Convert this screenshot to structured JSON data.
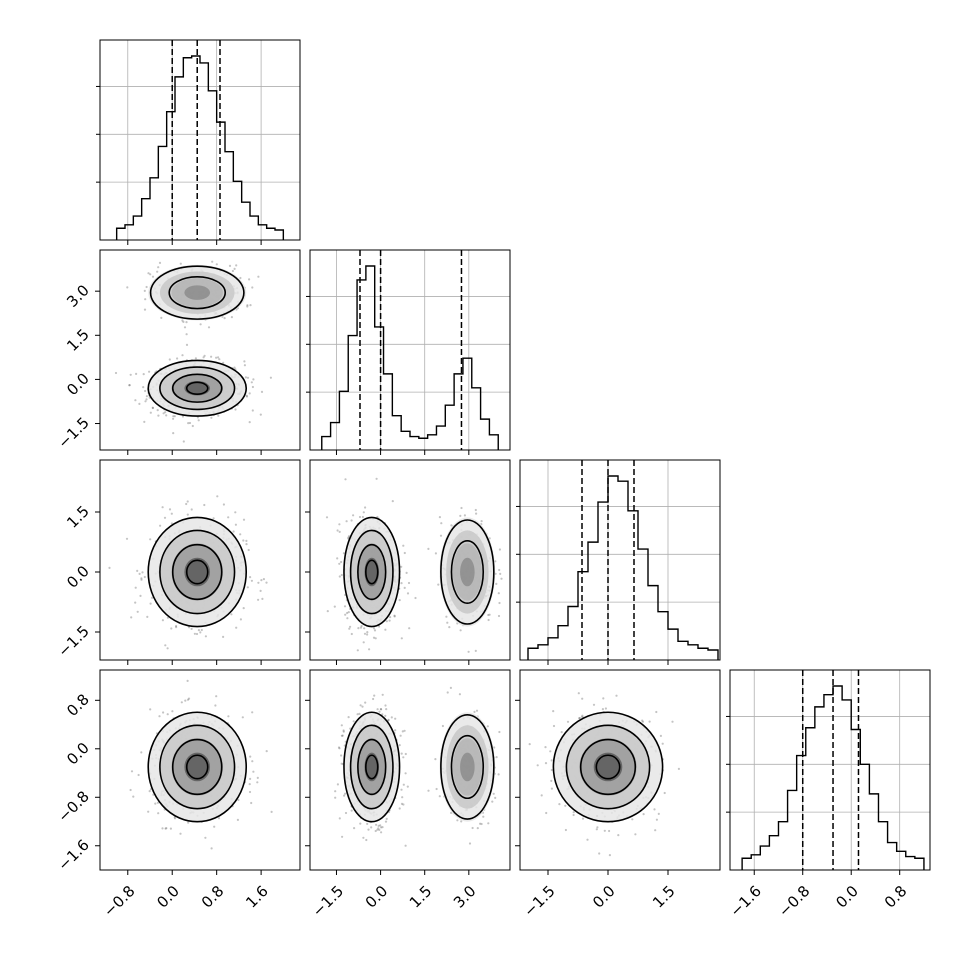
{
  "chart_data": {
    "type": "corner",
    "title": "",
    "parameters": [
      {
        "range": [
          -1.3,
          2.3
        ],
        "quantiles": [
          0.0,
          0.45,
          0.86
        ],
        "xticks": [
          "−0.8",
          "0.0",
          "0.8",
          "1.6"
        ],
        "xtick_values": [
          -0.8,
          0.0,
          0.8,
          1.6
        ],
        "hist": {
          "bins": [
            -1.0,
            -0.85,
            -0.7,
            -0.55,
            -0.4,
            -0.25,
            -0.1,
            0.05,
            0.2,
            0.35,
            0.5,
            0.65,
            0.8,
            0.95,
            1.1,
            1.25,
            1.4,
            1.55,
            1.7,
            1.85
          ],
          "counts": [
            1,
            3,
            8,
            18,
            30,
            48,
            68,
            88,
            99,
            100,
            96,
            80,
            62,
            45,
            28,
            16,
            8,
            3,
            1,
            0
          ]
        },
        "modes": [
          {
            "x": 0.45,
            "sx": 0.42
          }
        ]
      },
      {
        "range": [
          -2.4,
          4.4
        ],
        "quantiles": [
          -0.7,
          0.0,
          2.75
        ],
        "ticks": [
          "−1.5",
          "0.0",
          "1.5",
          "3.0"
        ],
        "tick_values": [
          -1.5,
          0.0,
          1.5,
          3.0
        ],
        "hist": {
          "bins": [
            -2.0,
            -1.7,
            -1.4,
            -1.1,
            -0.8,
            -0.5,
            -0.2,
            0.1,
            0.4,
            0.7,
            1.0,
            1.3,
            1.6,
            1.9,
            2.2,
            2.5,
            2.8,
            3.1,
            3.4,
            3.7
          ],
          "counts": [
            2,
            10,
            28,
            60,
            92,
            100,
            65,
            38,
            14,
            5,
            2,
            1,
            3,
            8,
            20,
            38,
            47,
            30,
            12,
            3
          ]
        },
        "modes": [
          {
            "x": -0.3,
            "sx": 0.45,
            "w": 0.7
          },
          {
            "x": 2.95,
            "sx": 0.45,
            "w": 0.3
          }
        ]
      },
      {
        "range": [
          -2.2,
          2.8
        ],
        "quantiles": [
          -0.65,
          0.0,
          0.65
        ],
        "ticks": [
          "−1.5",
          "0.0",
          "1.5"
        ],
        "tick_values": [
          -1.5,
          0.0,
          1.5
        ],
        "hist": {
          "bins": [
            -2.0,
            -1.75,
            -1.5,
            -1.25,
            -1.0,
            -0.75,
            -0.5,
            -0.25,
            0.0,
            0.25,
            0.5,
            0.75,
            1.0,
            1.25,
            1.5,
            1.75,
            2.0,
            2.25,
            2.5
          ],
          "counts": [
            1,
            3,
            7,
            14,
            25,
            45,
            62,
            85,
            100,
            97,
            80,
            58,
            37,
            22,
            12,
            5,
            3,
            1,
            0
          ]
        },
        "modes": [
          {
            "x": 0.0,
            "sx": 0.65
          }
        ]
      },
      {
        "range": [
          -2.0,
          1.3
        ],
        "quantiles": [
          -0.8,
          -0.3,
          0.12
        ],
        "ticks": [
          "−1.6",
          "−0.8",
          "0.0",
          "0.8"
        ],
        "tick_values": [
          -1.6,
          -0.8,
          0.0,
          0.8
        ],
        "yticks": [
          "0.8",
          "0.0",
          "−0.8",
          "−1.6"
        ],
        "ytick_values": [
          0.8,
          0.0,
          -0.8,
          -1.6
        ],
        "hist": {
          "bins": [
            -1.8,
            -1.65,
            -1.5,
            -1.35,
            -1.2,
            -1.05,
            -0.9,
            -0.75,
            -0.6,
            -0.45,
            -0.3,
            -0.15,
            0.0,
            0.15,
            0.3,
            0.45,
            0.6,
            0.75,
            0.9,
            1.05
          ],
          "counts": [
            1,
            3,
            8,
            14,
            22,
            40,
            60,
            76,
            88,
            95,
            100,
            92,
            75,
            55,
            38,
            22,
            10,
            5,
            2,
            1
          ]
        },
        "modes": [
          {
            "x": -0.3,
            "sx": 0.43
          }
        ]
      }
    ],
    "grid_on": true
  }
}
